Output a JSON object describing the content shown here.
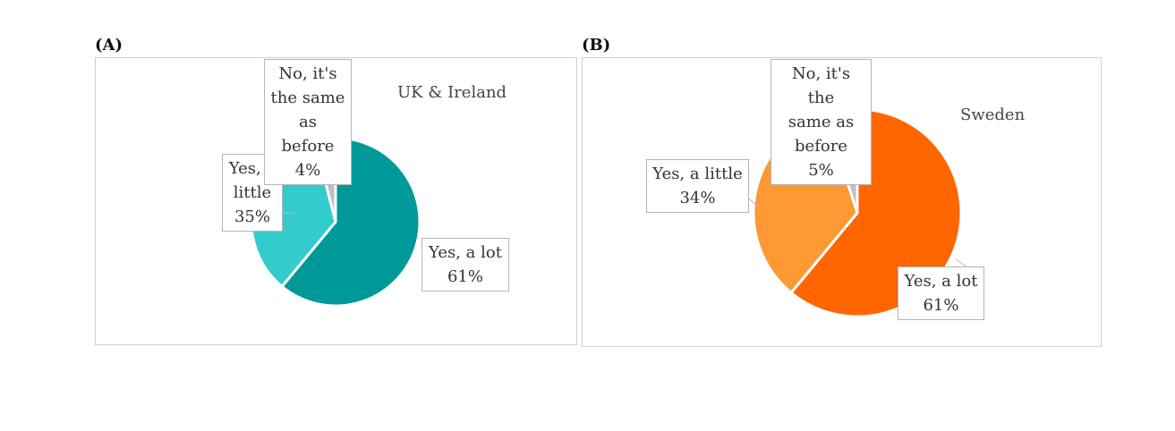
{
  "panels": [
    {
      "letter": "(A)"
    },
    {
      "letter": "(B)"
    }
  ],
  "chart_data": [
    {
      "type": "pie",
      "title": "UK & Ireland",
      "slices": [
        {
          "category": "Yes, a lot",
          "value": 61,
          "label": "61%",
          "color": "#009999"
        },
        {
          "category": "Yes, a little",
          "value": 35,
          "label": "35%",
          "color": "#33cccc"
        },
        {
          "category": "No, it's the same as before",
          "value": 4,
          "label": "4%",
          "color": "#c0c0c0"
        }
      ],
      "callouts": [
        {
          "lines": [
            "Yes, a lot",
            "61%"
          ]
        },
        {
          "lines": [
            "Yes, a",
            "little",
            "35%"
          ]
        },
        {
          "lines": [
            "No, it's",
            "the same",
            "as before",
            "4%"
          ]
        }
      ]
    },
    {
      "type": "pie",
      "title": "Sweden",
      "slices": [
        {
          "category": "Yes, a lot",
          "value": 61,
          "label": "61%",
          "color": "#ff6600"
        },
        {
          "category": "Yes, a little",
          "value": 34,
          "label": "34%",
          "color": "#ff9933"
        },
        {
          "category": "No, it's the same as before",
          "value": 5,
          "label": "5%",
          "color": "#c0c0c0"
        }
      ],
      "callouts": [
        {
          "lines": [
            "Yes, a lot",
            "61%"
          ]
        },
        {
          "lines": [
            "Yes, a little",
            "34%"
          ]
        },
        {
          "lines": [
            "No, it's the",
            "same as",
            "before",
            "5%"
          ]
        }
      ]
    }
  ]
}
